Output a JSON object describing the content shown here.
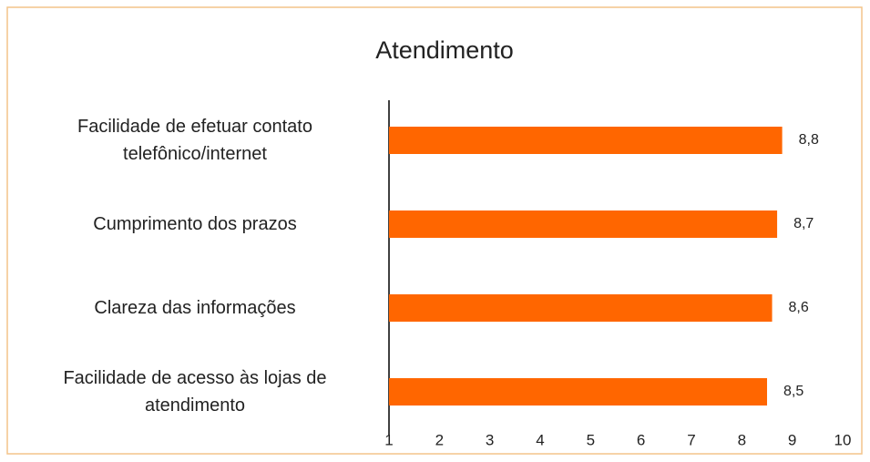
{
  "chart_data": {
    "type": "barh",
    "title": "Atendimento",
    "categories": [
      "Facilidade de efetuar contato telefônico/internet",
      "Cumprimento dos prazos",
      "Clareza das informações",
      "Facilidade de acesso às lojas de atendimento"
    ],
    "values": [
      8.8,
      8.7,
      8.6,
      8.5
    ],
    "value_labels": [
      "8,8",
      "8,7",
      "8,6",
      "8,5"
    ],
    "color": "#ff6600",
    "xlim": [
      1,
      10
    ],
    "xticks": [
      1,
      2,
      3,
      4,
      5,
      6,
      7,
      8,
      9,
      10
    ],
    "grid": false
  }
}
